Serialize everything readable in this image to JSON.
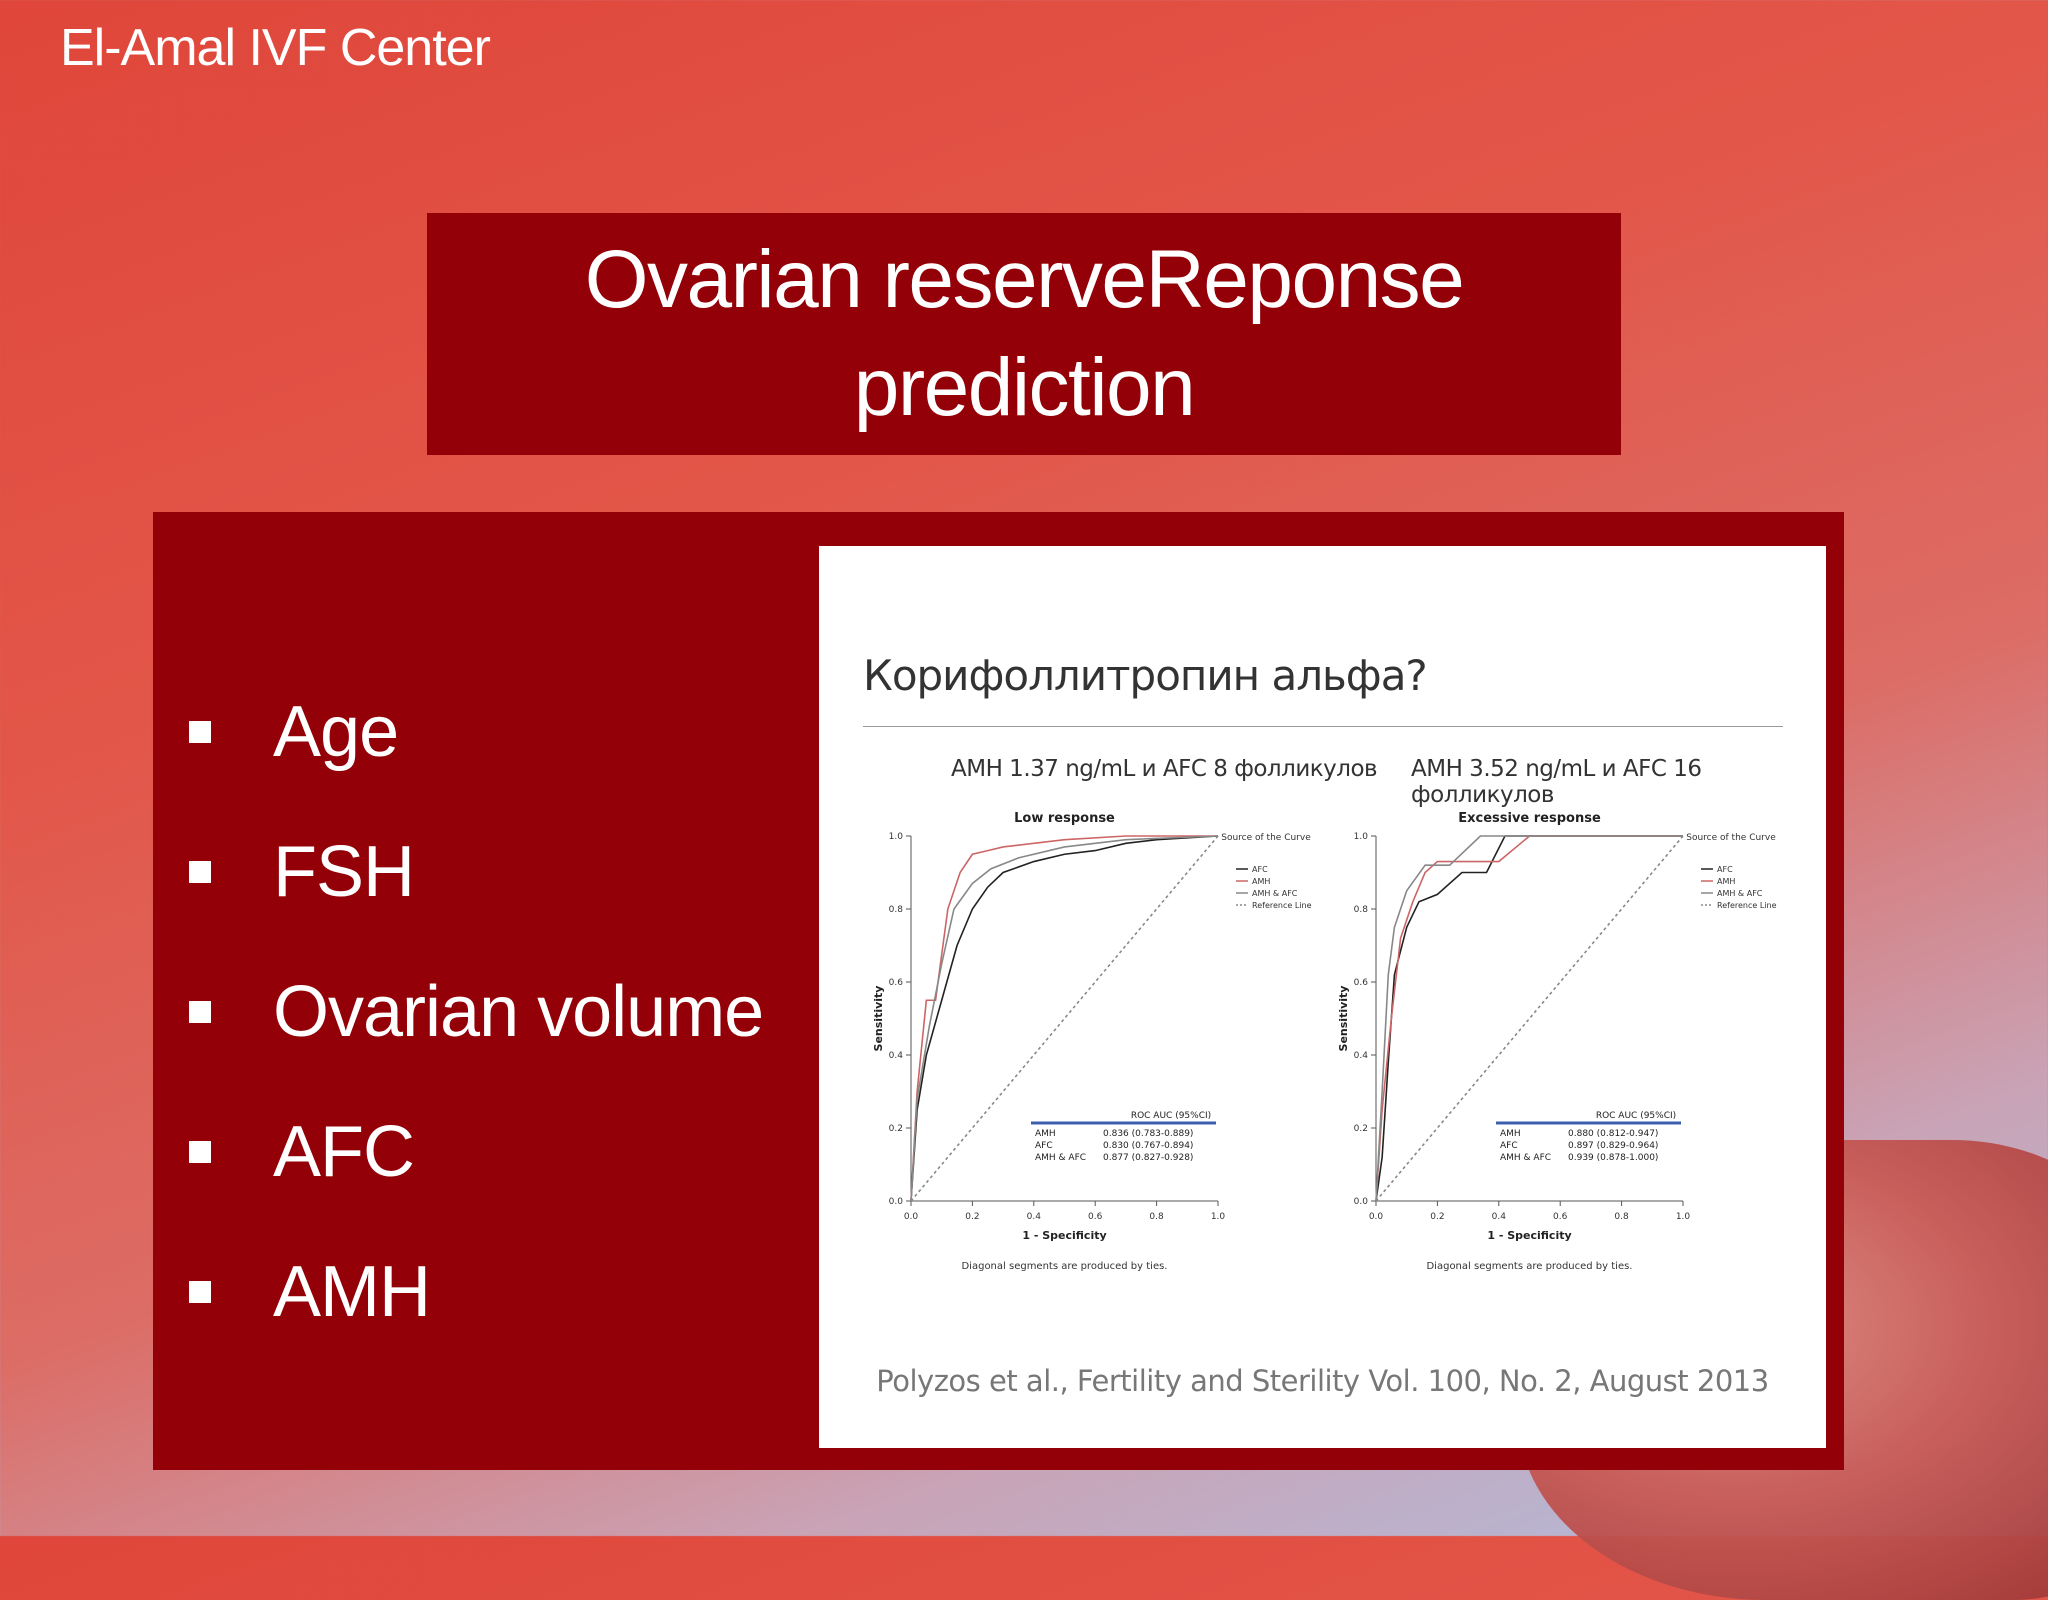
{
  "header": {
    "title": "El-Amal IVF Center"
  },
  "slide": {
    "title_line1": "Ovarian reserveReponse",
    "title_line2": "prediction",
    "bullets": [
      "Age",
      "FSH",
      "Ovarian volume",
      "AFC",
      "AMH"
    ]
  },
  "figure": {
    "heading": "Корифоллитропин альфа?",
    "left_caption": "AMH 1.37 ng/mL и AFC 8 фолликулов",
    "right_caption": "AMH 3.52 ng/mL и AFC 16 фолликулов",
    "citation": "Polyzos et al., Fertility and Sterility Vol. 100, No. 2, August 2013"
  },
  "colors": {
    "accent": "#930007",
    "series_afc": "#222222",
    "series_amh": "#cc6666",
    "series_amh_afc": "#888888"
  },
  "chart_data": [
    {
      "type": "line",
      "title": "Low response",
      "xlabel": "1 - Specificity",
      "ylabel": "Sensitivity",
      "xlim": [
        0,
        1
      ],
      "ylim": [
        0,
        1
      ],
      "ticks": [
        "0.0",
        "0.2",
        "0.4",
        "0.6",
        "0.8",
        "1.0"
      ],
      "legend_title": "Source of the Curve",
      "footnote": "Diagonal segments are produced by ties.",
      "table_header": "ROC AUC (95%CI)",
      "table_rows": [
        [
          "AMH",
          "0.836 (0.783-0.889)"
        ],
        [
          "AFC",
          "0.830 (0.767-0.894)"
        ],
        [
          "AMH & AFC",
          "0.877 (0.827-0.928)"
        ]
      ],
      "series": [
        {
          "name": "AFC",
          "x": [
            0,
            0.02,
            0.05,
            0.1,
            0.15,
            0.2,
            0.25,
            0.3,
            0.4,
            0.5,
            0.6,
            0.7,
            0.8,
            1
          ],
          "y": [
            0,
            0.25,
            0.4,
            0.55,
            0.7,
            0.8,
            0.86,
            0.9,
            0.93,
            0.95,
            0.96,
            0.98,
            0.99,
            1
          ]
        },
        {
          "name": "AMH",
          "x": [
            0,
            0.02,
            0.05,
            0.08,
            0.12,
            0.16,
            0.2,
            0.25,
            0.3,
            0.5,
            0.7,
            1
          ],
          "y": [
            0,
            0.3,
            0.55,
            0.55,
            0.8,
            0.9,
            0.95,
            0.96,
            0.97,
            0.99,
            1,
            1
          ]
        },
        {
          "name": "AMH & AFC",
          "x": [
            0,
            0.02,
            0.06,
            0.1,
            0.14,
            0.2,
            0.26,
            0.35,
            0.5,
            0.7,
            1
          ],
          "y": [
            0,
            0.28,
            0.48,
            0.65,
            0.8,
            0.87,
            0.91,
            0.94,
            0.97,
            0.99,
            1
          ]
        },
        {
          "name": "Reference Line",
          "x": [
            0,
            1
          ],
          "y": [
            0,
            1
          ]
        }
      ]
    },
    {
      "type": "line",
      "title": "Excessive response",
      "xlabel": "1 - Specificity",
      "ylabel": "Sensitivity",
      "xlim": [
        0,
        1
      ],
      "ylim": [
        0,
        1
      ],
      "ticks": [
        "0.0",
        "0.2",
        "0.4",
        "0.6",
        "0.8",
        "1.0"
      ],
      "legend_title": "Source of the Curve",
      "footnote": "Diagonal segments are produced by ties.",
      "table_header": "ROC AUC (95%CI)",
      "table_rows": [
        [
          "AMH",
          "0.880 (0.812-0.947)"
        ],
        [
          "AFC",
          "0.897 (0.829-0.964)"
        ],
        [
          "AMH & AFC",
          "0.939 (0.878-1.000)"
        ]
      ],
      "series": [
        {
          "name": "AFC",
          "x": [
            0,
            0.02,
            0.04,
            0.06,
            0.1,
            0.14,
            0.2,
            0.28,
            0.36,
            0.42,
            0.5,
            1
          ],
          "y": [
            0,
            0.12,
            0.38,
            0.62,
            0.75,
            0.82,
            0.84,
            0.9,
            0.9,
            1,
            1,
            1
          ]
        },
        {
          "name": "AMH",
          "x": [
            0,
            0.02,
            0.05,
            0.08,
            0.12,
            0.16,
            0.2,
            0.4,
            0.5,
            1
          ],
          "y": [
            0,
            0.25,
            0.5,
            0.72,
            0.82,
            0.9,
            0.93,
            0.93,
            1,
            1
          ]
        },
        {
          "name": "AMH & AFC",
          "x": [
            0,
            0.02,
            0.04,
            0.06,
            0.1,
            0.16,
            0.24,
            0.34,
            0.5,
            1
          ],
          "y": [
            0,
            0.3,
            0.62,
            0.75,
            0.85,
            0.92,
            0.92,
            1,
            1,
            1
          ]
        },
        {
          "name": "Reference Line",
          "x": [
            0,
            1
          ],
          "y": [
            0,
            1
          ]
        }
      ]
    }
  ]
}
